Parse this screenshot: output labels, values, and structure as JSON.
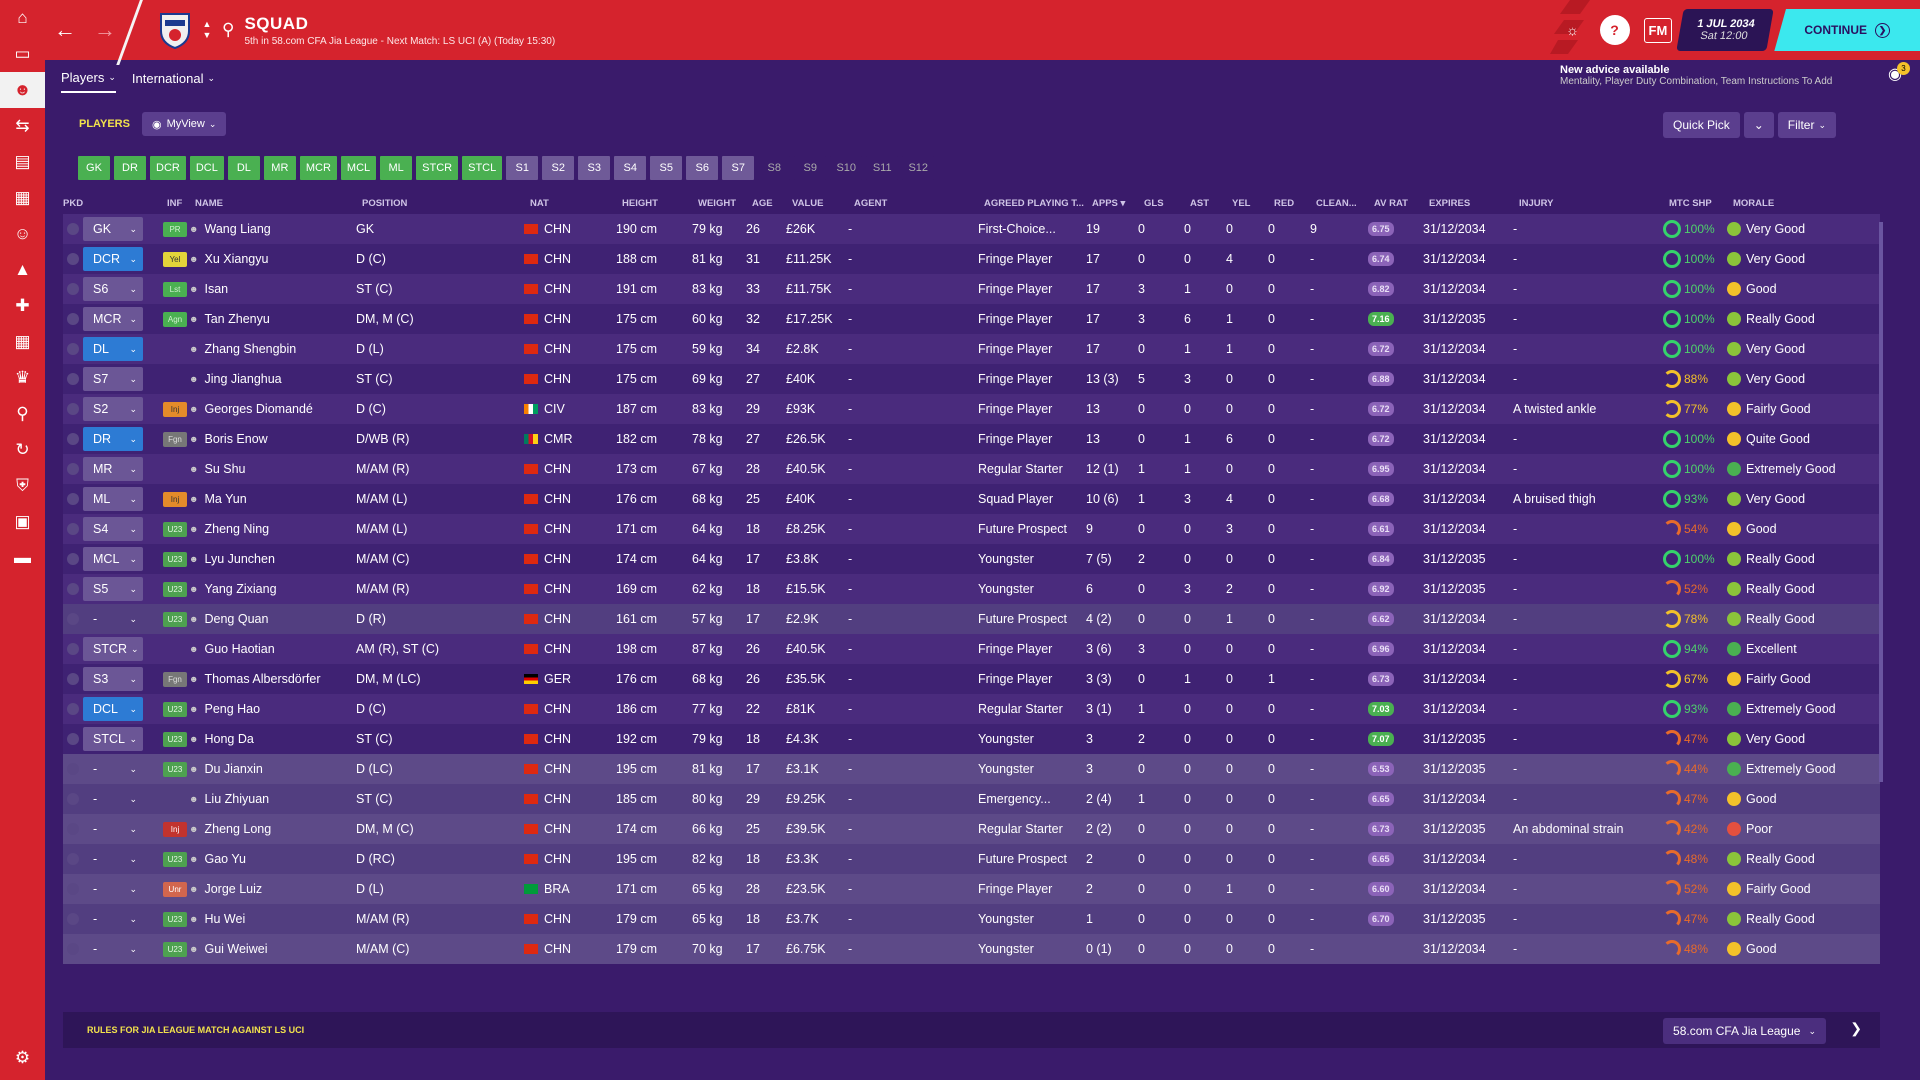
{
  "sidebar": {
    "items": [
      "home-icon",
      "inbox-icon",
      "squad-icon",
      "transfers-icon",
      "tactics-icon",
      "reports-icon",
      "staff-icon",
      "training-icon",
      "medical-icon",
      "schedule-icon",
      "competitions-icon",
      "scouting-icon",
      "dynamics-icon",
      "club-icon",
      "finances-icon",
      "data-icon",
      "settings-icon"
    ]
  },
  "header": {
    "title": "SQUAD",
    "subtitle": "5th in 58.com CFA Jia League - Next Match: LS UCI (A) (Today 15:30)",
    "fm": "FM",
    "date_line1": "1 JUL 2034",
    "date_line2": "Sat 12:00",
    "continue": "CONTINUE"
  },
  "subnav": {
    "tabs": [
      "Players",
      "International"
    ]
  },
  "advice": {
    "title": "New advice available",
    "text": "Mentality, Player Duty Combination, Team Instructions To Add",
    "count": "3"
  },
  "toolbar": {
    "players_label": "PLAYERS",
    "view": "MyView",
    "quick_pick": "Quick Pick",
    "filter": "Filter"
  },
  "position_filters": [
    {
      "l": "GK",
      "s": "g"
    },
    {
      "l": "DR",
      "s": "g"
    },
    {
      "l": "DCR",
      "s": "g"
    },
    {
      "l": "DCL",
      "s": "g"
    },
    {
      "l": "DL",
      "s": "g"
    },
    {
      "l": "MR",
      "s": "g"
    },
    {
      "l": "MCR",
      "s": "g"
    },
    {
      "l": "MCL",
      "s": "g"
    },
    {
      "l": "ML",
      "s": "g"
    },
    {
      "l": "STCR",
      "s": "g"
    },
    {
      "l": "STCL",
      "s": "g"
    },
    {
      "l": "S1",
      "s": "n"
    },
    {
      "l": "S2",
      "s": "n"
    },
    {
      "l": "S3",
      "s": "n"
    },
    {
      "l": "S4",
      "s": "n"
    },
    {
      "l": "S5",
      "s": "n"
    },
    {
      "l": "S6",
      "s": "n"
    },
    {
      "l": "S7",
      "s": "n"
    },
    {
      "l": "S8",
      "s": "d"
    },
    {
      "l": "S9",
      "s": "d"
    },
    {
      "l": "S10",
      "s": "d"
    },
    {
      "l": "S11",
      "s": "d"
    },
    {
      "l": "S12",
      "s": "d"
    }
  ],
  "columns": [
    "PKD",
    "INF",
    "NAME",
    "POSITION",
    "NAT",
    "HEIGHT",
    "WEIGHT",
    "AGE",
    "VALUE",
    "AGENT",
    "AGREED PLAYING T...",
    "APPS",
    "GLS",
    "AST",
    "YEL",
    "RED",
    "CLEAN...",
    "AV RAT",
    "EXPIRES",
    "INJURY",
    "MTC SHP",
    "MORALE"
  ],
  "players": [
    {
      "slot": "GK",
      "sc": "n",
      "inf": "PR",
      "it": "green",
      "name": "Wang Liang",
      "pos": "GK",
      "flag": "chn",
      "nat": "CHN",
      "h": "190 cm",
      "w": "79 kg",
      "age": "26",
      "val": "£26K",
      "agent": "-",
      "apt": "First-Choice...",
      "apps": "19",
      "gls": "0",
      "ast": "0",
      "yel": "0",
      "red": "0",
      "cln": "9",
      "rat": "6.75",
      "rh": false,
      "exp": "31/12/2034",
      "inj": "-",
      "mtc": "100%",
      "mc": "g",
      "mor": "Very Good",
      "mf": "vg"
    },
    {
      "slot": "DCR",
      "sc": "b",
      "inf": "Yel",
      "it": "yellow",
      "name": "Xu Xiangyu",
      "pos": "D (C)",
      "flag": "chn",
      "nat": "CHN",
      "h": "188 cm",
      "w": "81 kg",
      "age": "31",
      "val": "£11.25K",
      "agent": "-",
      "apt": "Fringe Player",
      "apps": "17",
      "gls": "0",
      "ast": "0",
      "yel": "4",
      "red": "0",
      "cln": "-",
      "rat": "6.74",
      "rh": false,
      "exp": "31/12/2034",
      "inj": "-",
      "mtc": "100%",
      "mc": "g",
      "mor": "Very Good",
      "mf": "vg"
    },
    {
      "slot": "S6",
      "sc": "n",
      "inf": "Lst",
      "it": "green",
      "name": "Isan",
      "pos": "ST (C)",
      "flag": "chn",
      "nat": "CHN",
      "h": "191 cm",
      "w": "83 kg",
      "age": "33",
      "val": "£11.75K",
      "agent": "-",
      "apt": "Fringe Player",
      "apps": "17",
      "gls": "3",
      "ast": "1",
      "yel": "0",
      "red": "0",
      "cln": "-",
      "rat": "6.82",
      "rh": false,
      "exp": "31/12/2034",
      "inj": "-",
      "mtc": "100%",
      "mc": "g",
      "mor": "Good",
      "mf": "g"
    },
    {
      "slot": "MCR",
      "sc": "n",
      "inf": "Agn",
      "it": "green",
      "name": "Tan Zhenyu",
      "pos": "DM, M (C)",
      "flag": "chn",
      "nat": "CHN",
      "h": "175 cm",
      "w": "60 kg",
      "age": "32",
      "val": "£17.25K",
      "agent": "-",
      "apt": "Fringe Player",
      "apps": "17",
      "gls": "3",
      "ast": "6",
      "yel": "1",
      "red": "0",
      "cln": "-",
      "rat": "7.16",
      "rh": true,
      "exp": "31/12/2035",
      "inj": "-",
      "mtc": "100%",
      "mc": "g",
      "mor": "Really Good",
      "mf": "vg"
    },
    {
      "slot": "DL",
      "sc": "b",
      "inf": "",
      "it": "",
      "name": "Zhang Shengbin",
      "pos": "D (L)",
      "flag": "chn",
      "nat": "CHN",
      "h": "175 cm",
      "w": "59 kg",
      "age": "34",
      "val": "£2.8K",
      "agent": "-",
      "apt": "Fringe Player",
      "apps": "17",
      "gls": "0",
      "ast": "1",
      "yel": "1",
      "red": "0",
      "cln": "-",
      "rat": "6.72",
      "rh": false,
      "exp": "31/12/2034",
      "inj": "-",
      "mtc": "100%",
      "mc": "g",
      "mor": "Very Good",
      "mf": "vg"
    },
    {
      "slot": "S7",
      "sc": "n",
      "inf": "",
      "it": "",
      "name": "Jing Jianghua",
      "pos": "ST (C)",
      "flag": "chn",
      "nat": "CHN",
      "h": "175 cm",
      "w": "69 kg",
      "age": "27",
      "val": "£40K",
      "agent": "-",
      "apt": "Fringe Player",
      "apps": "13 (3)",
      "gls": "5",
      "ast": "3",
      "yel": "0",
      "red": "0",
      "cln": "-",
      "rat": "6.88",
      "rh": false,
      "exp": "31/12/2034",
      "inj": "-",
      "mtc": "88%",
      "mc": "y",
      "mor": "Very Good",
      "mf": "vg"
    },
    {
      "slot": "S2",
      "sc": "n",
      "inf": "Inj",
      "it": "orange",
      "name": "Georges Diomandé",
      "pos": "D (C)",
      "flag": "civ",
      "nat": "CIV",
      "h": "187 cm",
      "w": "83 kg",
      "age": "29",
      "val": "£93K",
      "agent": "-",
      "apt": "Fringe Player",
      "apps": "13",
      "gls": "0",
      "ast": "0",
      "yel": "0",
      "red": "0",
      "cln": "-",
      "rat": "6.72",
      "rh": false,
      "exp": "31/12/2034",
      "inj": "A twisted ankle",
      "mtc": "77%",
      "mc": "y",
      "mor": "Fairly Good",
      "mf": "g"
    },
    {
      "slot": "DR",
      "sc": "b",
      "inf": "Fgn",
      "it": "gray",
      "name": "Boris Enow",
      "pos": "D/WB (R)",
      "flag": "cmr",
      "nat": "CMR",
      "h": "182 cm",
      "w": "78 kg",
      "age": "27",
      "val": "£26.5K",
      "agent": "-",
      "apt": "Fringe Player",
      "apps": "13",
      "gls": "0",
      "ast": "1",
      "yel": "6",
      "red": "0",
      "cln": "-",
      "rat": "6.72",
      "rh": false,
      "exp": "31/12/2034",
      "inj": "-",
      "mtc": "100%",
      "mc": "g",
      "mor": "Quite Good",
      "mf": "g"
    },
    {
      "slot": "MR",
      "sc": "n",
      "inf": "",
      "it": "",
      "name": "Su Shu",
      "pos": "M/AM (R)",
      "flag": "chn",
      "nat": "CHN",
      "h": "173 cm",
      "w": "67 kg",
      "age": "28",
      "val": "£40.5K",
      "agent": "-",
      "apt": "Regular Starter",
      "apps": "12 (1)",
      "gls": "1",
      "ast": "1",
      "yel": "0",
      "red": "0",
      "cln": "-",
      "rat": "6.95",
      "rh": false,
      "exp": "31/12/2034",
      "inj": "-",
      "mtc": "100%",
      "mc": "g",
      "mor": "Extremely Good",
      "mf": "eg"
    },
    {
      "slot": "ML",
      "sc": "n",
      "inf": "Inj",
      "it": "orange",
      "name": "Ma Yun",
      "pos": "M/AM (L)",
      "flag": "chn",
      "nat": "CHN",
      "h": "176 cm",
      "w": "68 kg",
      "age": "25",
      "val": "£40K",
      "agent": "-",
      "apt": "Squad Player",
      "apps": "10 (6)",
      "gls": "1",
      "ast": "3",
      "yel": "4",
      "red": "0",
      "cln": "-",
      "rat": "6.68",
      "rh": false,
      "exp": "31/12/2034",
      "inj": "A bruised thigh",
      "mtc": "93%",
      "mc": "g",
      "mor": "Very Good",
      "mf": "vg"
    },
    {
      "slot": "S4",
      "sc": "n",
      "inf": "U23",
      "it": "green2",
      "name": "Zheng Ning",
      "pos": "M/AM (L)",
      "flag": "chn",
      "nat": "CHN",
      "h": "171 cm",
      "w": "64 kg",
      "age": "18",
      "val": "£8.25K",
      "agent": "-",
      "apt": "Future Prospect",
      "apps": "9",
      "gls": "0",
      "ast": "0",
      "yel": "3",
      "red": "0",
      "cln": "-",
      "rat": "6.61",
      "rh": false,
      "exp": "31/12/2034",
      "inj": "-",
      "mtc": "54%",
      "mc": "o",
      "mor": "Good",
      "mf": "g"
    },
    {
      "slot": "MCL",
      "sc": "n",
      "inf": "U23",
      "it": "green2",
      "name": "Lyu Junchen",
      "pos": "M/AM (C)",
      "flag": "chn",
      "nat": "CHN",
      "h": "174 cm",
      "w": "64 kg",
      "age": "17",
      "val": "£3.8K",
      "agent": "-",
      "apt": "Youngster",
      "apps": "7 (5)",
      "gls": "2",
      "ast": "0",
      "yel": "0",
      "red": "0",
      "cln": "-",
      "rat": "6.84",
      "rh": false,
      "exp": "31/12/2035",
      "inj": "-",
      "mtc": "100%",
      "mc": "g",
      "mor": "Really Good",
      "mf": "vg"
    },
    {
      "slot": "S5",
      "sc": "n",
      "inf": "U23",
      "it": "green2",
      "name": "Yang Zixiang",
      "pos": "M/AM (R)",
      "flag": "chn",
      "nat": "CHN",
      "h": "169 cm",
      "w": "62 kg",
      "age": "18",
      "val": "£15.5K",
      "agent": "-",
      "apt": "Youngster",
      "apps": "6",
      "gls": "0",
      "ast": "3",
      "yel": "2",
      "red": "0",
      "cln": "-",
      "rat": "6.92",
      "rh": false,
      "exp": "31/12/2035",
      "inj": "-",
      "mtc": "52%",
      "mc": "o",
      "mor": "Really Good",
      "mf": "vg"
    },
    {
      "slot": "-",
      "sc": "none",
      "inf": "U23",
      "it": "green2",
      "name": "Deng Quan",
      "pos": "D (R)",
      "flag": "chn",
      "nat": "CHN",
      "h": "161 cm",
      "w": "57 kg",
      "age": "17",
      "val": "£2.9K",
      "agent": "-",
      "apt": "Future Prospect",
      "apps": "4 (2)",
      "gls": "0",
      "ast": "0",
      "yel": "1",
      "red": "0",
      "cln": "-",
      "rat": "6.62",
      "rh": false,
      "exp": "31/12/2034",
      "inj": "-",
      "mtc": "78%",
      "mc": "y",
      "mor": "Really Good",
      "mf": "vg"
    },
    {
      "slot": "STCR",
      "sc": "n",
      "inf": "",
      "it": "",
      "name": "Guo Haotian",
      "pos": "AM (R), ST (C)",
      "flag": "chn",
      "nat": "CHN",
      "h": "198 cm",
      "w": "87 kg",
      "age": "26",
      "val": "£40.5K",
      "agent": "-",
      "apt": "Fringe Player",
      "apps": "3 (6)",
      "gls": "3",
      "ast": "0",
      "yel": "0",
      "red": "0",
      "cln": "-",
      "rat": "6.96",
      "rh": false,
      "exp": "31/12/2034",
      "inj": "-",
      "mtc": "94%",
      "mc": "g",
      "mor": "Excellent",
      "mf": "eg"
    },
    {
      "slot": "S3",
      "sc": "n",
      "inf": "Fgn",
      "it": "gray",
      "name": "Thomas Albersdörfer",
      "pos": "DM, M (LC)",
      "flag": "ger",
      "nat": "GER",
      "h": "176 cm",
      "w": "68 kg",
      "age": "26",
      "val": "£35.5K",
      "agent": "-",
      "apt": "Fringe Player",
      "apps": "3 (3)",
      "gls": "0",
      "ast": "1",
      "yel": "0",
      "red": "1",
      "cln": "-",
      "rat": "6.73",
      "rh": false,
      "exp": "31/12/2034",
      "inj": "-",
      "mtc": "67%",
      "mc": "y",
      "mor": "Fairly Good",
      "mf": "g"
    },
    {
      "slot": "DCL",
      "sc": "b",
      "inf": "U23",
      "it": "green2",
      "name": "Peng Hao",
      "pos": "D (C)",
      "flag": "chn",
      "nat": "CHN",
      "h": "186 cm",
      "w": "77 kg",
      "age": "22",
      "val": "£81K",
      "agent": "-",
      "apt": "Regular Starter",
      "apps": "3 (1)",
      "gls": "1",
      "ast": "0",
      "yel": "0",
      "red": "0",
      "cln": "-",
      "rat": "7.03",
      "rh": true,
      "exp": "31/12/2034",
      "inj": "-",
      "mtc": "93%",
      "mc": "g",
      "mor": "Extremely Good",
      "mf": "eg"
    },
    {
      "slot": "STCL",
      "sc": "n",
      "inf": "U23",
      "it": "green2",
      "name": "Hong Da",
      "pos": "ST (C)",
      "flag": "chn",
      "nat": "CHN",
      "h": "192 cm",
      "w": "79 kg",
      "age": "18",
      "val": "£4.3K",
      "agent": "-",
      "apt": "Youngster",
      "apps": "3",
      "gls": "2",
      "ast": "0",
      "yel": "0",
      "red": "0",
      "cln": "-",
      "rat": "7.07",
      "rh": true,
      "exp": "31/12/2035",
      "inj": "-",
      "mtc": "47%",
      "mc": "o",
      "mor": "Very Good",
      "mf": "vg"
    },
    {
      "slot": "-",
      "sc": "none",
      "inf": "U23",
      "it": "green2",
      "name": "Du Jianxin",
      "pos": "D (LC)",
      "flag": "chn",
      "nat": "CHN",
      "h": "195 cm",
      "w": "81 kg",
      "age": "17",
      "val": "£3.1K",
      "agent": "-",
      "apt": "Youngster",
      "apps": "3",
      "gls": "0",
      "ast": "0",
      "yel": "0",
      "red": "0",
      "cln": "-",
      "rat": "6.53",
      "rh": false,
      "exp": "31/12/2035",
      "inj": "-",
      "mtc": "44%",
      "mc": "o",
      "mor": "Extremely Good",
      "mf": "eg"
    },
    {
      "slot": "-",
      "sc": "none",
      "inf": "",
      "it": "",
      "name": "Liu Zhiyuan",
      "pos": "ST (C)",
      "flag": "chn",
      "nat": "CHN",
      "h": "185 cm",
      "w": "80 kg",
      "age": "29",
      "val": "£9.25K",
      "agent": "-",
      "apt": "Emergency...",
      "apps": "2 (4)",
      "gls": "1",
      "ast": "0",
      "yel": "0",
      "red": "0",
      "cln": "-",
      "rat": "6.65",
      "rh": false,
      "exp": "31/12/2034",
      "inj": "-",
      "mtc": "47%",
      "mc": "o",
      "mor": "Good",
      "mf": "g"
    },
    {
      "slot": "-",
      "sc": "none",
      "inf": "Inj",
      "it": "red",
      "name": "Zheng Long",
      "pos": "DM, M (C)",
      "flag": "chn",
      "nat": "CHN",
      "h": "174 cm",
      "w": "66 kg",
      "age": "25",
      "val": "£39.5K",
      "agent": "-",
      "apt": "Regular Starter",
      "apps": "2 (2)",
      "gls": "0",
      "ast": "0",
      "yel": "0",
      "red": "0",
      "cln": "-",
      "rat": "6.73",
      "rh": false,
      "exp": "31/12/2035",
      "inj": "An abdominal strain",
      "mtc": "42%",
      "mc": "o",
      "mor": "Poor",
      "mf": "p"
    },
    {
      "slot": "-",
      "sc": "none",
      "inf": "U23",
      "it": "green2",
      "name": "Gao Yu",
      "pos": "D (RC)",
      "flag": "chn",
      "nat": "CHN",
      "h": "195 cm",
      "w": "82 kg",
      "age": "18",
      "val": "£3.3K",
      "agent": "-",
      "apt": "Future Prospect",
      "apps": "2",
      "gls": "0",
      "ast": "0",
      "yel": "0",
      "red": "0",
      "cln": "-",
      "rat": "6.65",
      "rh": false,
      "exp": "31/12/2034",
      "inj": "-",
      "mtc": "48%",
      "mc": "o",
      "mor": "Really Good",
      "mf": "vg"
    },
    {
      "slot": "-",
      "sc": "none",
      "inf": "Unr",
      "it": "rose",
      "name": "Jorge Luiz",
      "pos": "D (L)",
      "flag": "bra",
      "nat": "BRA",
      "h": "171 cm",
      "w": "65 kg",
      "age": "28",
      "val": "£23.5K",
      "agent": "-",
      "apt": "Fringe Player",
      "apps": "2",
      "gls": "0",
      "ast": "0",
      "yel": "1",
      "red": "0",
      "cln": "-",
      "rat": "6.60",
      "rh": false,
      "exp": "31/12/2034",
      "inj": "-",
      "mtc": "52%",
      "mc": "o",
      "mor": "Fairly Good",
      "mf": "g"
    },
    {
      "slot": "-",
      "sc": "none",
      "inf": "U23",
      "it": "green2",
      "name": "Hu Wei",
      "pos": "M/AM (R)",
      "flag": "chn",
      "nat": "CHN",
      "h": "179 cm",
      "w": "65 kg",
      "age": "18",
      "val": "£3.7K",
      "agent": "-",
      "apt": "Youngster",
      "apps": "1",
      "gls": "0",
      "ast": "0",
      "yel": "0",
      "red": "0",
      "cln": "-",
      "rat": "6.70",
      "rh": false,
      "exp": "31/12/2035",
      "inj": "-",
      "mtc": "47%",
      "mc": "o",
      "mor": "Really Good",
      "mf": "vg"
    },
    {
      "slot": "-",
      "sc": "none",
      "inf": "U23",
      "it": "green2",
      "name": "Gui Weiwei",
      "pos": "M/AM (C)",
      "flag": "chn",
      "nat": "CHN",
      "h": "179 cm",
      "w": "70 kg",
      "age": "17",
      "val": "£6.75K",
      "agent": "-",
      "apt": "Youngster",
      "apps": "0 (1)",
      "gls": "0",
      "ast": "0",
      "yel": "0",
      "red": "0",
      "cln": "-",
      "rat": "",
      "rh": false,
      "exp": "31/12/2034",
      "inj": "-",
      "mtc": "48%",
      "mc": "o",
      "mor": "Good",
      "mf": "g"
    }
  ],
  "footer": {
    "rules": "RULES FOR JIA LEAGUE MATCH AGAINST LS UCI",
    "league": "58.com CFA Jia League"
  }
}
